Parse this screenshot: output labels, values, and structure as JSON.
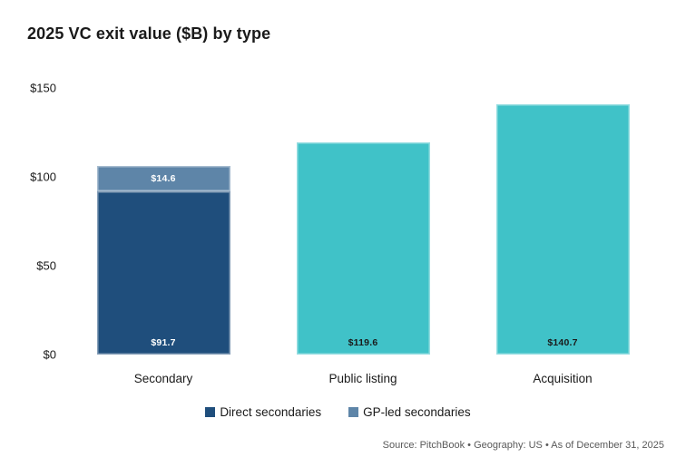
{
  "chart_data": {
    "type": "bar",
    "stacked": true,
    "title": "2025 VC exit value ($B) by type",
    "categories": [
      "Secondary",
      "Public listing",
      "Acquisition"
    ],
    "bars": [
      {
        "category": "Secondary",
        "segments": [
          {
            "name": "Direct secondaries",
            "value": 91.7,
            "label": "$91.7",
            "color": "#1f4e7c",
            "label_color": "#ffffff"
          },
          {
            "name": "GP-led secondaries",
            "value": 14.6,
            "label": "$14.6",
            "color": "#5e85a8",
            "label_color": "#ffffff"
          }
        ]
      },
      {
        "category": "Public listing",
        "segments": [
          {
            "name": "Public listing",
            "value": 119.6,
            "label": "$119.6",
            "color": "#40c2c8",
            "label_color": "#1a1a1a"
          }
        ]
      },
      {
        "category": "Acquisition",
        "segments": [
          {
            "name": "Acquisition",
            "value": 140.7,
            "label": "$140.7",
            "color": "#40c2c8",
            "label_color": "#1a1a1a"
          }
        ]
      }
    ],
    "y_axis": {
      "min": 0,
      "max": 150,
      "ticks": [
        {
          "value": 0,
          "label": "$0"
        },
        {
          "value": 50,
          "label": "$50"
        },
        {
          "value": 100,
          "label": "$100"
        },
        {
          "value": 150,
          "label": "$150"
        }
      ]
    },
    "legend": [
      {
        "label": "Direct secondaries",
        "color": "#1f4e7c"
      },
      {
        "label": "GP-led secondaries",
        "color": "#5e85a8"
      }
    ],
    "grid": false,
    "legend_position": "bottom"
  },
  "footer": {
    "source": "Source: PitchBook • Geography: US • As of December 31, 2025"
  },
  "colors": {
    "direct_secondaries": "#1f4e7c",
    "gp_led_secondaries": "#5e85a8",
    "single_bar_teal": "#40c2c8",
    "text_primary": "#1a1a1a",
    "source_text": "#595959",
    "background": "#ffffff"
  }
}
